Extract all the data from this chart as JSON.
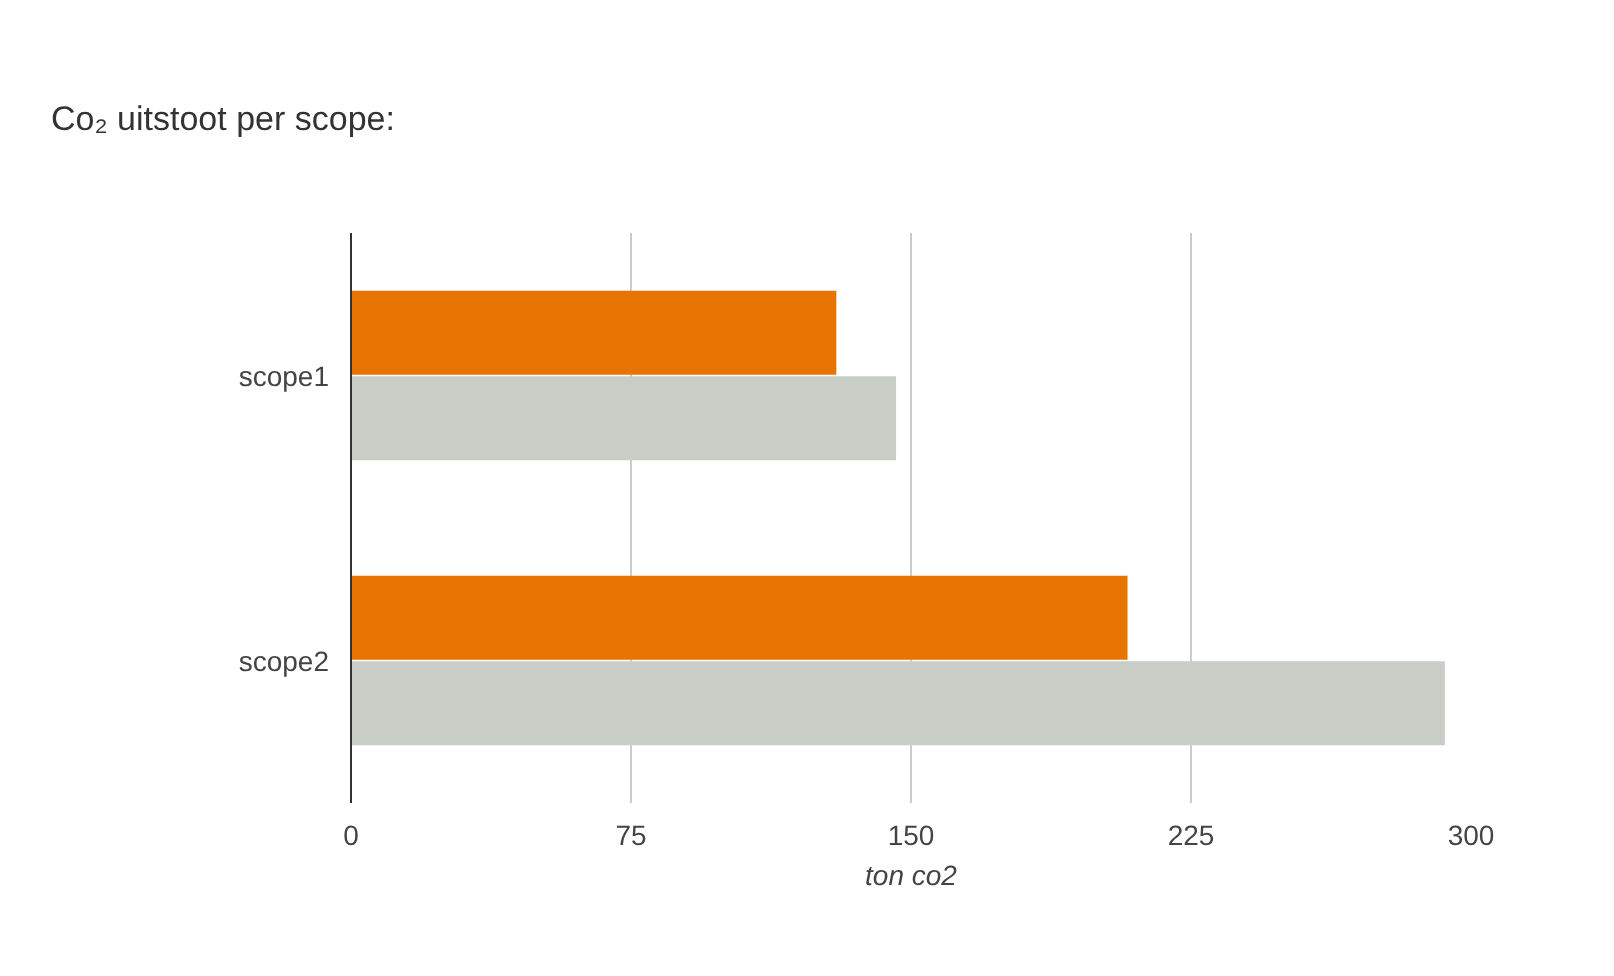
{
  "chart_data": {
    "type": "bar",
    "orientation": "horizontal",
    "title": "Co₂ uitstoot per scope:",
    "xlabel": "ton co2",
    "categories": [
      "scope1",
      "scope2"
    ],
    "series": [
      {
        "color": "#e87400",
        "values": [
          130,
          208
        ]
      },
      {
        "color": "#c8cec6",
        "values": [
          146,
          293
        ]
      }
    ],
    "xlim": [
      0,
      300
    ],
    "xticks": [
      0,
      75,
      150,
      225,
      300
    ],
    "grid": "x"
  }
}
